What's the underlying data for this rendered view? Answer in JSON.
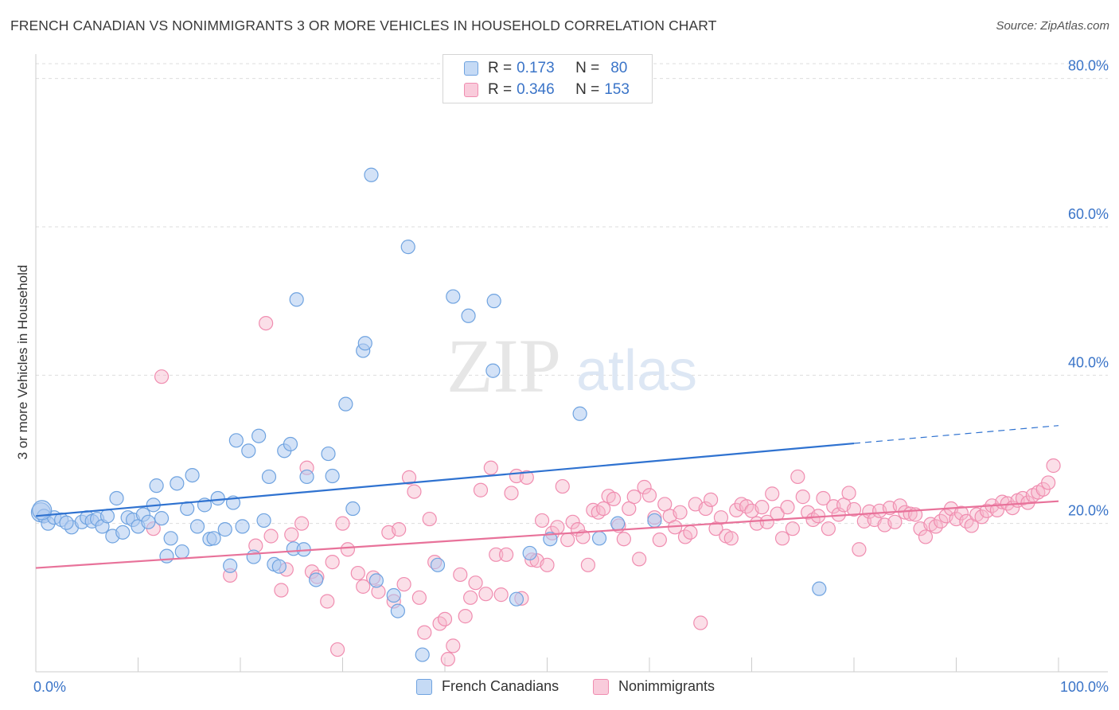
{
  "header": {
    "title": "FRENCH CANADIAN VS NONIMMIGRANTS 3 OR MORE VEHICLES IN HOUSEHOLD CORRELATION CHART",
    "source": "Source: ZipAtlas.com"
  },
  "watermark": {
    "zip": "ZIP",
    "atlas": "atlas"
  },
  "legend": {
    "rows": [
      {
        "r_label": "R =",
        "r_value": "0.173",
        "n_label": "N =",
        "n_value": "80",
        "color": "#6fa3e0"
      },
      {
        "r_label": "R =",
        "r_value": "0.346",
        "n_label": "N =",
        "n_value": "153",
        "color": "#f08db0"
      }
    ]
  },
  "colors": {
    "blue_fill": "#aecbf0",
    "blue_stroke": "#6fa3e0",
    "blue_line": "#2f72d0",
    "pink_fill": "#f7b8cd",
    "pink_stroke": "#f08db0",
    "pink_line": "#e8729a",
    "axis_text": "#3a74c8",
    "grid": "#dddddd"
  },
  "chart_data": {
    "type": "scatter",
    "title": "FRENCH CANADIAN VS NONIMMIGRANTS 3 OR MORE VEHICLES IN HOUSEHOLD CORRELATION CHART",
    "xlabel": "",
    "ylabel": "3 or more Vehicles in Household",
    "xlim": [
      0,
      100
    ],
    "ylim": [
      0,
      82
    ],
    "x_tick_labels": [
      "0.0%",
      "100.0%"
    ],
    "y_ticks": [
      20,
      40,
      60,
      80
    ],
    "y_tick_labels": [
      "20.0%",
      "40.0%",
      "60.0%",
      "80.0%"
    ],
    "grid": "horizontal dashed",
    "legend_placement": "bottom-center",
    "series": [
      {
        "name": "French Canadians",
        "color": "#6fa3e0",
        "trend": {
          "x": [
            0,
            80
          ],
          "y": [
            21.0,
            30.8
          ],
          "dashed_extension_to": [
            100,
            33.2
          ]
        },
        "points": [
          [
            0.5,
            21.5
          ],
          [
            0.8,
            21.0
          ],
          [
            1.2,
            20.0
          ],
          [
            1.8,
            20.8
          ],
          [
            2.5,
            20.5
          ],
          [
            3.5,
            19.5
          ],
          [
            4.5,
            20.2
          ],
          [
            5.0,
            20.8
          ],
          [
            5.5,
            20.3
          ],
          [
            6.0,
            20.6
          ],
          [
            6.5,
            19.6
          ],
          [
            7.0,
            21.0
          ],
          [
            7.5,
            18.3
          ],
          [
            7.9,
            23.4
          ],
          [
            8.5,
            18.8
          ],
          [
            9.0,
            20.8
          ],
          [
            9.5,
            20.5
          ],
          [
            10.0,
            19.6
          ],
          [
            10.5,
            21.2
          ],
          [
            11.0,
            20.2
          ],
          [
            11.5,
            22.5
          ],
          [
            11.8,
            25.1
          ],
          [
            12.3,
            20.7
          ],
          [
            12.8,
            15.6
          ],
          [
            13.2,
            18.0
          ],
          [
            13.8,
            25.4
          ],
          [
            14.3,
            16.2
          ],
          [
            14.8,
            22.0
          ],
          [
            15.3,
            26.5
          ],
          [
            15.8,
            19.6
          ],
          [
            16.5,
            22.5
          ],
          [
            17.0,
            17.9
          ],
          [
            17.4,
            18.0
          ],
          [
            17.8,
            23.4
          ],
          [
            18.5,
            19.2
          ],
          [
            19.0,
            14.3
          ],
          [
            19.3,
            22.8
          ],
          [
            19.6,
            31.2
          ],
          [
            20.2,
            19.6
          ],
          [
            20.8,
            29.8
          ],
          [
            21.3,
            15.5
          ],
          [
            21.8,
            31.8
          ],
          [
            22.3,
            20.4
          ],
          [
            22.8,
            26.3
          ],
          [
            23.3,
            14.5
          ],
          [
            23.8,
            14.2
          ],
          [
            24.3,
            29.8
          ],
          [
            24.9,
            30.7
          ],
          [
            25.2,
            16.6
          ],
          [
            25.5,
            50.2
          ],
          [
            26.2,
            16.5
          ],
          [
            26.5,
            26.3
          ],
          [
            27.4,
            12.4
          ],
          [
            28.6,
            29.4
          ],
          [
            29.0,
            26.4
          ],
          [
            30.3,
            36.1
          ],
          [
            31.0,
            22.0
          ],
          [
            32.0,
            43.3
          ],
          [
            32.2,
            44.3
          ],
          [
            32.8,
            67.0
          ],
          [
            33.3,
            12.3
          ],
          [
            35.0,
            10.3
          ],
          [
            35.4,
            8.2
          ],
          [
            36.4,
            57.3
          ],
          [
            37.8,
            2.3
          ],
          [
            39.3,
            14.4
          ],
          [
            40.8,
            50.6
          ],
          [
            42.3,
            48.0
          ],
          [
            44.8,
            50.0
          ],
          [
            44.7,
            40.6
          ],
          [
            47.0,
            9.8
          ],
          [
            48.3,
            16.0
          ],
          [
            50.3,
            17.9
          ],
          [
            53.2,
            34.8
          ],
          [
            55.1,
            18.0
          ],
          [
            56.9,
            20.0
          ],
          [
            60.5,
            20.4
          ],
          [
            76.6,
            11.2
          ],
          [
            0.6,
            21.8
          ],
          [
            3.0,
            20.1
          ]
        ]
      },
      {
        "name": "Nonimmigrants",
        "color": "#f08db0",
        "trend": {
          "x": [
            0,
            100
          ],
          "y": [
            14.0,
            23.0
          ]
        },
        "points": [
          [
            11.5,
            19.3
          ],
          [
            12.3,
            39.8
          ],
          [
            19.0,
            13.0
          ],
          [
            21.5,
            17.0
          ],
          [
            22.5,
            47.0
          ],
          [
            23.0,
            18.3
          ],
          [
            24.0,
            11.0
          ],
          [
            24.5,
            13.8
          ],
          [
            25.0,
            18.5
          ],
          [
            26.0,
            20.0
          ],
          [
            26.5,
            27.5
          ],
          [
            27.0,
            13.5
          ],
          [
            27.5,
            12.8
          ],
          [
            28.5,
            9.5
          ],
          [
            29.0,
            14.8
          ],
          [
            29.5,
            3.0
          ],
          [
            30.0,
            20.0
          ],
          [
            30.5,
            16.5
          ],
          [
            31.5,
            13.3
          ],
          [
            32.0,
            11.5
          ],
          [
            33.0,
            12.7
          ],
          [
            33.5,
            10.8
          ],
          [
            34.5,
            18.8
          ],
          [
            35.0,
            9.5
          ],
          [
            35.5,
            19.2
          ],
          [
            36.0,
            11.8
          ],
          [
            36.5,
            26.2
          ],
          [
            37.0,
            24.3
          ],
          [
            37.5,
            10.0
          ],
          [
            38.0,
            5.3
          ],
          [
            38.5,
            20.6
          ],
          [
            39.0,
            14.8
          ],
          [
            39.5,
            6.5
          ],
          [
            40.0,
            7.1
          ],
          [
            40.3,
            1.7
          ],
          [
            40.8,
            3.5
          ],
          [
            41.5,
            13.1
          ],
          [
            42.0,
            7.5
          ],
          [
            42.5,
            10.0
          ],
          [
            43.0,
            12.0
          ],
          [
            43.5,
            24.5
          ],
          [
            44.0,
            10.5
          ],
          [
            44.5,
            27.5
          ],
          [
            45.0,
            15.8
          ],
          [
            45.5,
            10.4
          ],
          [
            46.0,
            15.8
          ],
          [
            46.5,
            24.1
          ],
          [
            47.0,
            26.4
          ],
          [
            47.5,
            9.9
          ],
          [
            48.0,
            26.2
          ],
          [
            48.5,
            15.1
          ],
          [
            49.0,
            15.0
          ],
          [
            49.5,
            20.4
          ],
          [
            50.0,
            14.4
          ],
          [
            50.5,
            18.7
          ],
          [
            51.0,
            19.5
          ],
          [
            51.5,
            25.0
          ],
          [
            52.0,
            17.8
          ],
          [
            52.5,
            20.2
          ],
          [
            53.0,
            19.2
          ],
          [
            53.5,
            18.2
          ],
          [
            54.0,
            14.4
          ],
          [
            54.5,
            21.8
          ],
          [
            55.0,
            21.5
          ],
          [
            55.5,
            22.0
          ],
          [
            56.0,
            23.7
          ],
          [
            56.5,
            23.3
          ],
          [
            57.0,
            19.7
          ],
          [
            57.5,
            17.9
          ],
          [
            58.0,
            22.0
          ],
          [
            58.5,
            23.6
          ],
          [
            59.0,
            15.2
          ],
          [
            59.5,
            24.9
          ],
          [
            60.0,
            23.8
          ],
          [
            60.5,
            20.8
          ],
          [
            61.0,
            17.8
          ],
          [
            61.5,
            22.6
          ],
          [
            62.0,
            21.0
          ],
          [
            62.5,
            19.5
          ],
          [
            63.0,
            21.5
          ],
          [
            63.5,
            18.2
          ],
          [
            64.0,
            18.8
          ],
          [
            64.5,
            22.6
          ],
          [
            65.0,
            6.6
          ],
          [
            65.5,
            22.0
          ],
          [
            66.0,
            23.2
          ],
          [
            66.5,
            19.3
          ],
          [
            67.0,
            20.8
          ],
          [
            67.5,
            18.3
          ],
          [
            68.0,
            18.0
          ],
          [
            68.5,
            21.8
          ],
          [
            69.0,
            22.6
          ],
          [
            69.5,
            22.3
          ],
          [
            70.0,
            21.7
          ],
          [
            70.5,
            20.0
          ],
          [
            71.0,
            22.2
          ],
          [
            71.5,
            20.2
          ],
          [
            72.0,
            24.0
          ],
          [
            72.5,
            21.3
          ],
          [
            73.0,
            18.0
          ],
          [
            73.5,
            22.2
          ],
          [
            74.0,
            19.3
          ],
          [
            74.5,
            26.3
          ],
          [
            75.0,
            23.6
          ],
          [
            75.5,
            21.5
          ],
          [
            76.0,
            20.5
          ],
          [
            76.5,
            21.0
          ],
          [
            77.0,
            23.4
          ],
          [
            77.5,
            19.3
          ],
          [
            78.0,
            22.3
          ],
          [
            78.5,
            21.2
          ],
          [
            79.0,
            22.5
          ],
          [
            79.5,
            24.1
          ],
          [
            80.0,
            21.9
          ],
          [
            80.5,
            16.5
          ],
          [
            81.0,
            20.3
          ],
          [
            81.5,
            21.6
          ],
          [
            82.0,
            20.5
          ],
          [
            82.5,
            21.7
          ],
          [
            83.0,
            19.8
          ],
          [
            83.5,
            22.1
          ],
          [
            84.0,
            20.2
          ],
          [
            84.5,
            22.4
          ],
          [
            85.0,
            21.5
          ],
          [
            85.5,
            21.3
          ],
          [
            86.0,
            21.2
          ],
          [
            86.5,
            19.3
          ],
          [
            87.0,
            18.2
          ],
          [
            87.5,
            19.9
          ],
          [
            88.0,
            19.6
          ],
          [
            88.5,
            20.3
          ],
          [
            89.0,
            21.0
          ],
          [
            89.5,
            22.0
          ],
          [
            90.0,
            20.6
          ],
          [
            90.5,
            21.4
          ],
          [
            91.0,
            20.3
          ],
          [
            91.5,
            19.7
          ],
          [
            92.0,
            21.2
          ],
          [
            92.5,
            20.9
          ],
          [
            93.0,
            21.7
          ],
          [
            93.5,
            22.4
          ],
          [
            94.0,
            21.8
          ],
          [
            94.5,
            22.9
          ],
          [
            95.0,
            22.7
          ],
          [
            95.5,
            22.1
          ],
          [
            96.0,
            23.1
          ],
          [
            96.5,
            23.4
          ],
          [
            97.0,
            22.8
          ],
          [
            97.5,
            23.8
          ],
          [
            98.0,
            24.2
          ],
          [
            98.5,
            24.6
          ],
          [
            99.0,
            25.5
          ],
          [
            99.5,
            27.8
          ]
        ]
      }
    ]
  },
  "bottom_legend": {
    "items": [
      {
        "label": "French Canadians"
      },
      {
        "label": "Nonimmigrants"
      }
    ]
  }
}
